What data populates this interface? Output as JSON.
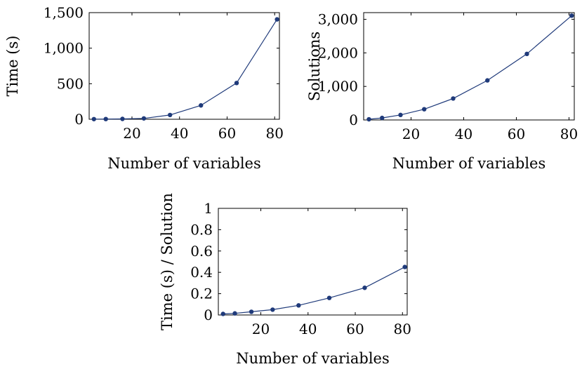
{
  "colors": {
    "series": "#1f3a7a",
    "axis": "#000000"
  },
  "chart_data": [
    {
      "type": "line",
      "xlabel": "Number of variables",
      "ylabel": "Time (s)",
      "xlim": [
        2,
        82
      ],
      "ylim": [
        0,
        1500
      ],
      "xticks": [
        20,
        40,
        60,
        80
      ],
      "xtick_labels": [
        "20",
        "40",
        "60",
        "80"
      ],
      "yticks": [
        0,
        500,
        1000,
        1500
      ],
      "ytick_labels": [
        "0",
        "500",
        "1,000",
        "1,500"
      ],
      "grid": false,
      "series": [
        {
          "x": [
            4,
            9,
            16,
            25,
            36,
            49,
            64,
            81
          ],
          "y": [
            2,
            3,
            5,
            12,
            60,
            195,
            510,
            1405
          ]
        }
      ]
    },
    {
      "type": "line",
      "xlabel": "Number of variables",
      "ylabel": "Solutions",
      "xlim": [
        2,
        82
      ],
      "ylim": [
        0,
        3200
      ],
      "xticks": [
        20,
        40,
        60,
        80
      ],
      "xtick_labels": [
        "20",
        "40",
        "60",
        "80"
      ],
      "yticks": [
        0,
        1000,
        2000,
        3000
      ],
      "ytick_labels": [
        "0",
        "1,000",
        "2,000",
        "3,000"
      ],
      "grid": false,
      "series": [
        {
          "x": [
            4,
            9,
            16,
            25,
            36,
            49,
            64,
            81
          ],
          "y": [
            20,
            60,
            150,
            320,
            640,
            1180,
            1970,
            3110
          ]
        }
      ]
    },
    {
      "type": "line",
      "xlabel": "Number of variables",
      "ylabel": "Time (s) / Solution",
      "xlim": [
        2,
        82
      ],
      "ylim": [
        0,
        1
      ],
      "xticks": [
        20,
        40,
        60,
        80
      ],
      "xtick_labels": [
        "20",
        "40",
        "60",
        "80"
      ],
      "yticks": [
        0,
        0.2,
        0.4,
        0.6,
        0.8,
        1
      ],
      "ytick_labels": [
        "0",
        "0.2",
        "0.4",
        "0.6",
        "0.8",
        "1"
      ],
      "grid": false,
      "series": [
        {
          "x": [
            4,
            9,
            16,
            25,
            36,
            49,
            64,
            81
          ],
          "y": [
            0.01,
            0.015,
            0.03,
            0.05,
            0.09,
            0.16,
            0.255,
            0.45
          ]
        }
      ]
    }
  ]
}
